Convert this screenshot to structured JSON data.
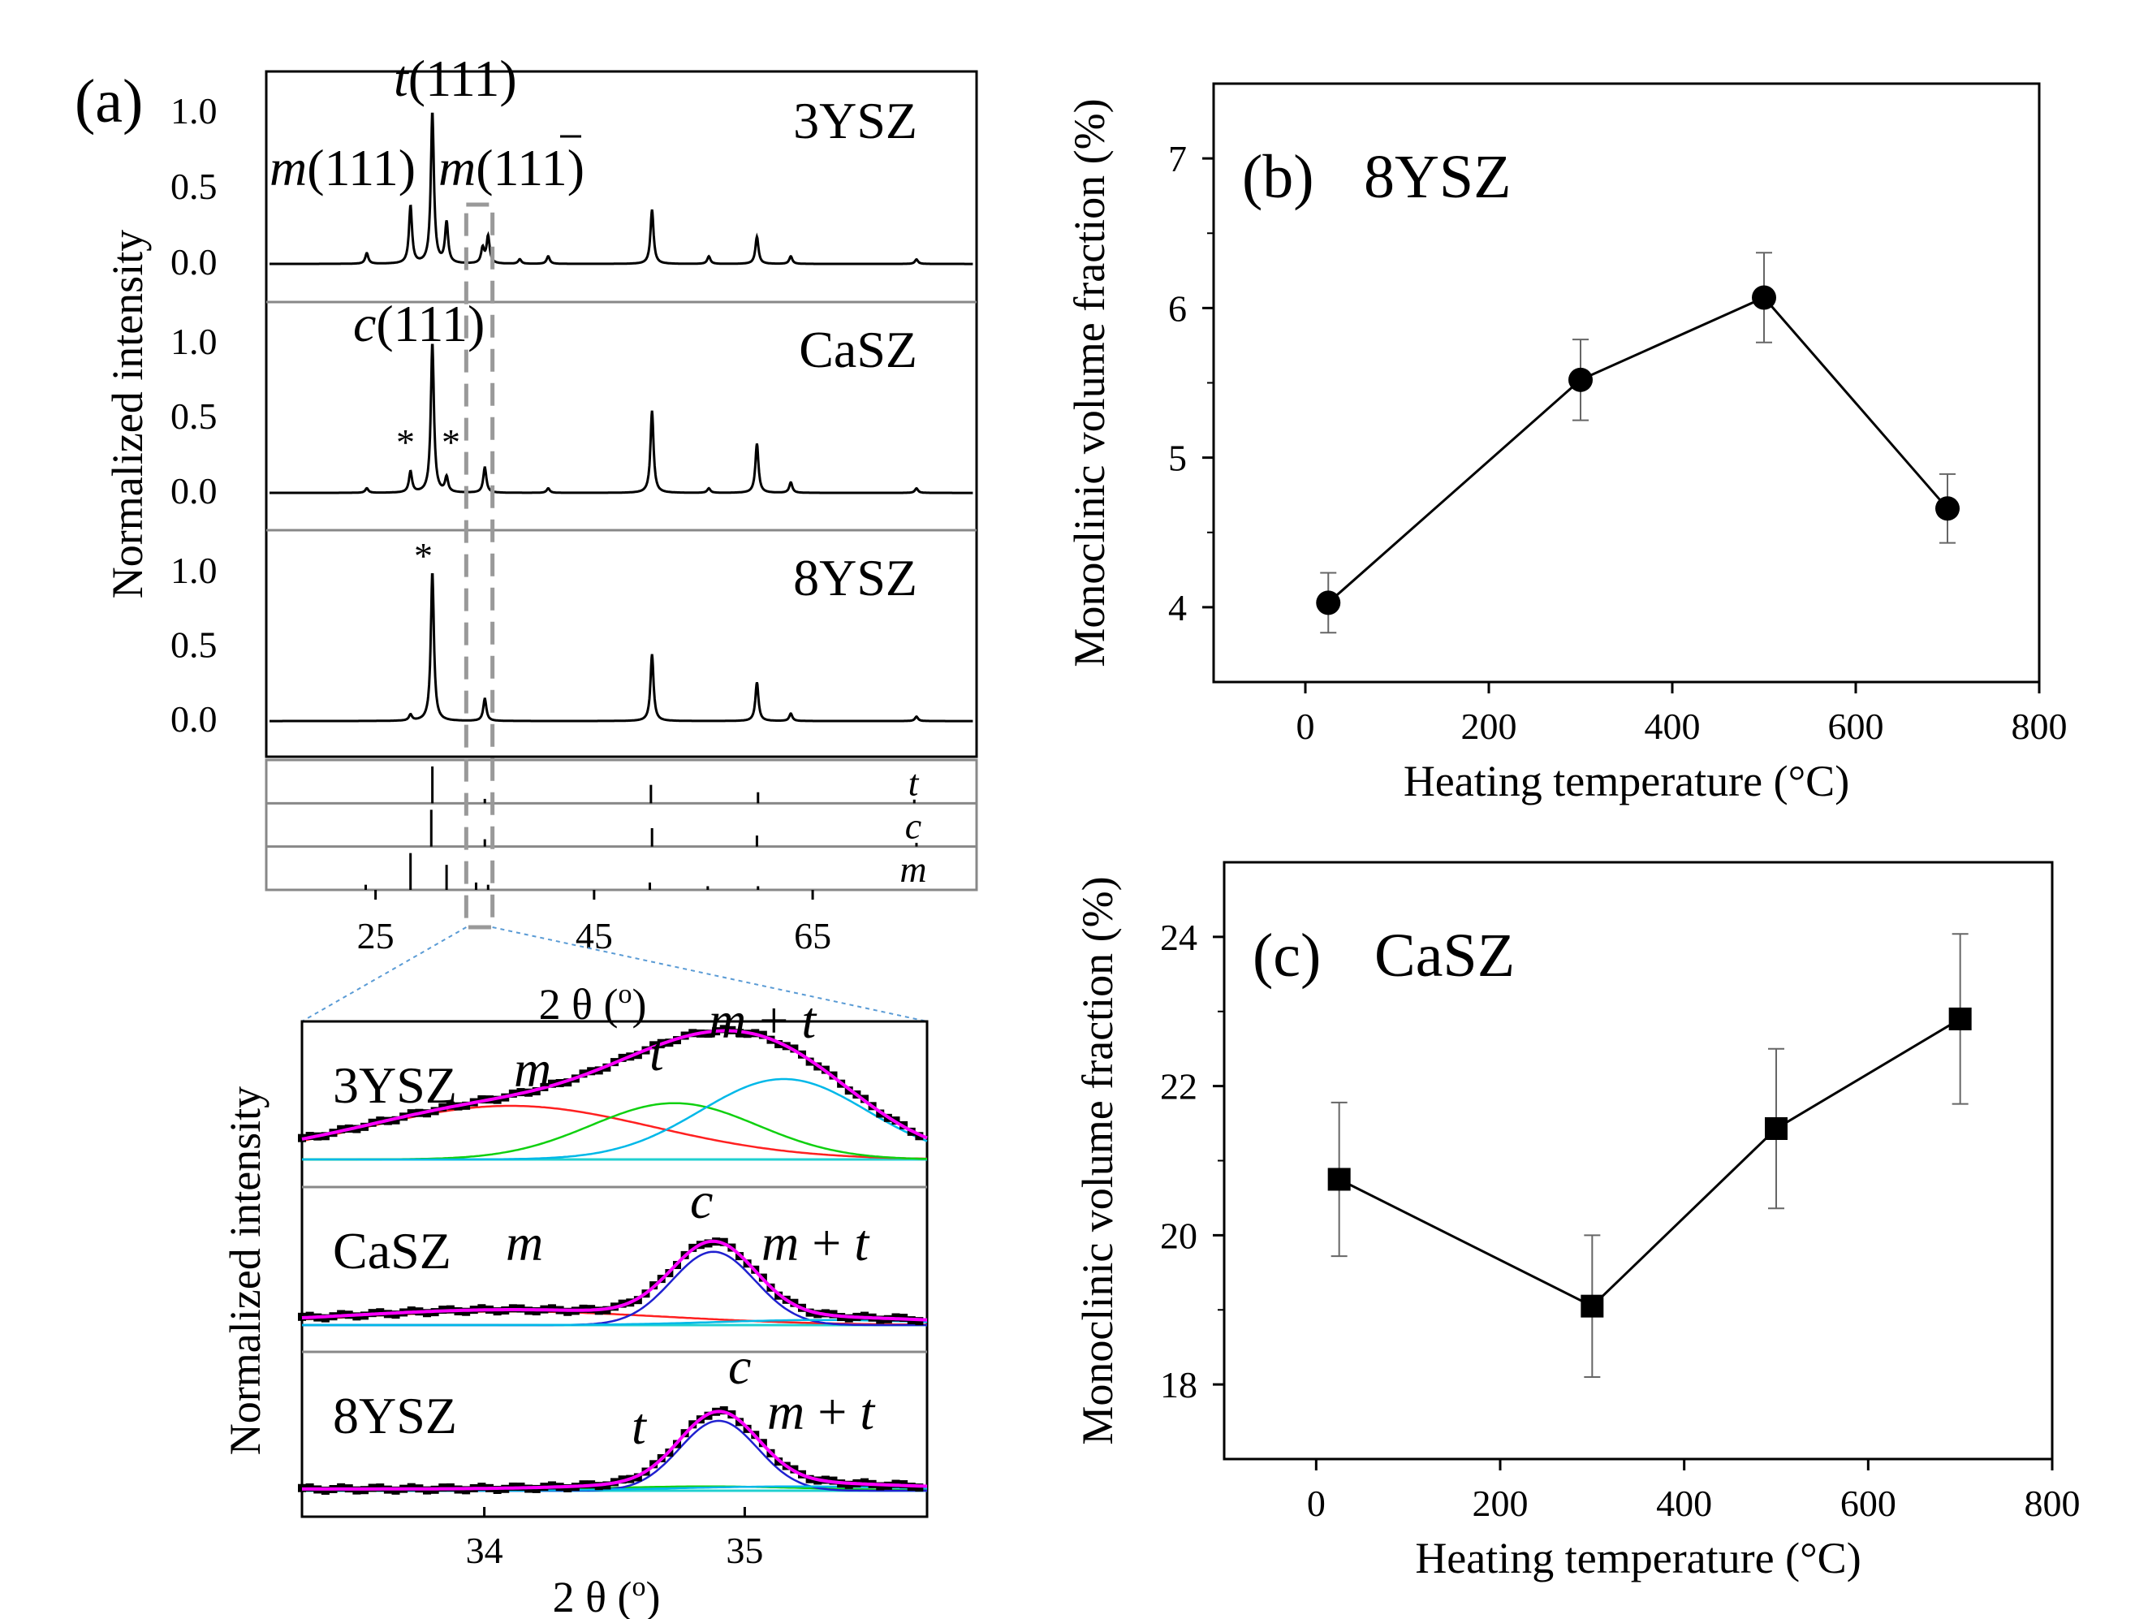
{
  "chart_data": [
    {
      "id": "a",
      "type": "line",
      "panel_label": "(a)",
      "xlabel": "2 θ (o)",
      "ylabel": "Normalized intensity",
      "xlim": [
        15,
        80
      ],
      "xticks": [
        "25",
        "45",
        "65"
      ],
      "yticks": [
        "1.0",
        "0.5",
        "0.0"
      ],
      "series": [
        {
          "name": "3YSZ",
          "peaks": [
            [
              24.2,
              0.07
            ],
            [
              28.2,
              0.38
            ],
            [
              30.2,
              1.0
            ],
            [
              31.5,
              0.27
            ],
            [
              34.8,
              0.1
            ],
            [
              35.3,
              0.18
            ],
            [
              38.2,
              0.03
            ],
            [
              40.8,
              0.05
            ],
            [
              50.3,
              0.36
            ],
            [
              55.5,
              0.05
            ],
            [
              59.9,
              0.18
            ],
            [
              63.0,
              0.05
            ],
            [
              74.5,
              0.03
            ]
          ],
          "peak_labels": [
            "t(111)",
            "m(111)",
            "m(11-1)"
          ]
        },
        {
          "name": "CaSZ",
          "peaks": [
            [
              24.2,
              0.03
            ],
            [
              28.2,
              0.14
            ],
            [
              30.2,
              1.0
            ],
            [
              31.5,
              0.1
            ],
            [
              35.0,
              0.17
            ],
            [
              40.8,
              0.03
            ],
            [
              50.3,
              0.55
            ],
            [
              55.5,
              0.03
            ],
            [
              59.9,
              0.33
            ],
            [
              63.0,
              0.07
            ],
            [
              74.5,
              0.03
            ]
          ],
          "peak_labels": [
            "c(111)",
            "*",
            "*"
          ]
        },
        {
          "name": "8YSZ",
          "peaks": [
            [
              28.2,
              0.04
            ],
            [
              30.2,
              1.0
            ],
            [
              35.0,
              0.15
            ],
            [
              50.3,
              0.45
            ],
            [
              59.9,
              0.26
            ],
            [
              63.0,
              0.05
            ],
            [
              74.5,
              0.03
            ]
          ],
          "peak_labels": [
            "*"
          ]
        }
      ],
      "reference_patterns": [
        {
          "name": "t",
          "lines": [
            [
              30.2,
              1.0
            ],
            [
              35.0,
              0.12
            ],
            [
              50.2,
              0.5
            ],
            [
              60.0,
              0.3
            ],
            [
              74.3,
              0.1
            ]
          ]
        },
        {
          "name": "c",
          "lines": [
            [
              30.1,
              1.0
            ],
            [
              35.0,
              0.2
            ],
            [
              50.3,
              0.5
            ],
            [
              59.9,
              0.3
            ],
            [
              74.5,
              0.1
            ]
          ]
        },
        {
          "name": "m",
          "lines": [
            [
              24.1,
              0.14
            ],
            [
              28.2,
              1.0
            ],
            [
              31.5,
              0.68
            ],
            [
              34.2,
              0.2
            ],
            [
              35.3,
              0.14
            ],
            [
              50.1,
              0.2
            ],
            [
              55.4,
              0.1
            ],
            [
              60.0,
              0.1
            ]
          ]
        }
      ],
      "zoom_window": [
        33.3,
        35.7
      ]
    },
    {
      "id": "a-inset",
      "type": "line",
      "xlabel": "2 θ (o)",
      "ylabel": "Normalized intensity",
      "xlim": [
        33.3,
        35.7
      ],
      "xticks": [
        "34",
        "35"
      ],
      "series": [
        {
          "name": "3YSZ",
          "components": {
            "m": [
              34.1,
              0.6,
              0.55
            ],
            "t": [
              34.73,
              0.63,
              0.32
            ],
            "m + t": [
              35.15,
              0.9,
              0.32
            ]
          },
          "labels": [
            "m",
            "t",
            "m + t"
          ]
        },
        {
          "name": "CaSZ",
          "components": {
            "m": [
              34.1,
              0.16,
              0.6
            ],
            "c": [
              34.88,
              0.86,
              0.16
            ],
            "m + t": [
              35.3,
              0.06,
              0.4
            ]
          },
          "labels": [
            "m",
            "c",
            "m + t"
          ]
        },
        {
          "name": "8YSZ",
          "components": {
            "t": [
              34.85,
              0.05,
              0.4
            ],
            "c": [
              34.9,
              0.82,
              0.15
            ],
            "m + t": [
              35.2,
              0.05,
              0.45
            ]
          },
          "labels": [
            "t",
            "c",
            "m + t"
          ]
        }
      ],
      "colors": {
        "data": "#000000",
        "fit": "#ff00ff",
        "m": "#ff2020",
        "t": "#10d010",
        "mt": "#00b8e8",
        "c": "#2020d0",
        "baseline": "#20d0d0"
      }
    },
    {
      "id": "b",
      "type": "scatter",
      "panel_label": "(b)",
      "title": "8YSZ",
      "xlabel": "Heating temperature (°C)",
      "ylabel": "Monoclinic volume fraction (%)",
      "xlim": [
        -100,
        800
      ],
      "ylim": [
        3.5,
        7.5
      ],
      "xticks": [
        0,
        200,
        400,
        600,
        800
      ],
      "yticks": [
        4,
        5,
        6,
        7
      ],
      "marker": "circle",
      "points": [
        {
          "x": 25,
          "y": 4.03,
          "err": 0.2
        },
        {
          "x": 300,
          "y": 5.52,
          "err": 0.27
        },
        {
          "x": 500,
          "y": 6.07,
          "err": 0.3
        },
        {
          "x": 700,
          "y": 4.66,
          "err": 0.23
        }
      ]
    },
    {
      "id": "c",
      "type": "scatter",
      "panel_label": "(c)",
      "title": "CaSZ",
      "xlabel": "Heating temperature (°C)",
      "ylabel": "Monoclinic volume fraction (%)",
      "xlim": [
        -100,
        800
      ],
      "ylim": [
        17,
        25
      ],
      "xticks": [
        0,
        200,
        400,
        600,
        800
      ],
      "yticks": [
        18,
        20,
        22,
        24
      ],
      "marker": "square",
      "points": [
        {
          "x": 25,
          "y": 20.75,
          "err": 1.03
        },
        {
          "x": 300,
          "y": 19.05,
          "err": 0.95
        },
        {
          "x": 500,
          "y": 21.43,
          "err": 1.07
        },
        {
          "x": 700,
          "y": 22.9,
          "err": 1.14
        }
      ]
    }
  ]
}
